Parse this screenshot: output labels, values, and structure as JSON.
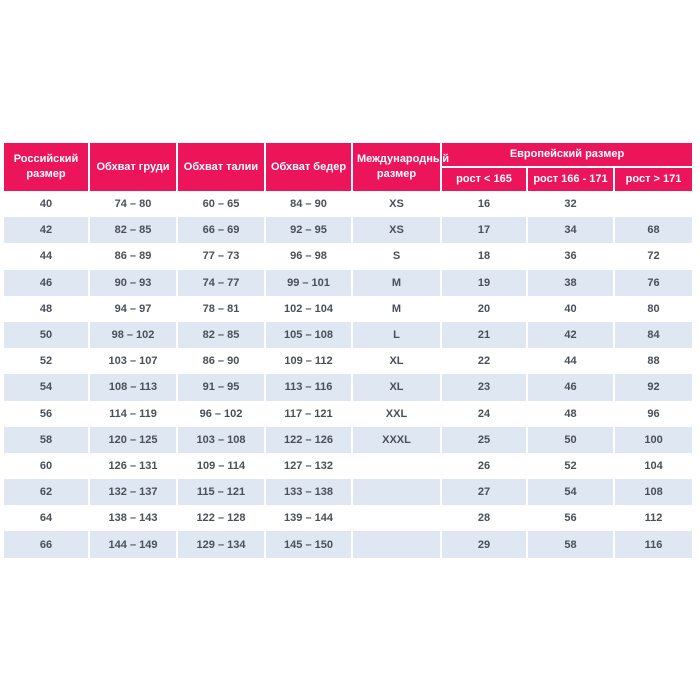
{
  "chart_data": {
    "type": "table",
    "header": {
      "russian_size": "Российский размер",
      "chest": "Обхват груди",
      "waist": "Обхват талии",
      "hips": "Обхват бедер",
      "international_size": "Международный размер",
      "european_group": "Европейский размер",
      "european_subcolumns": [
        "рост < 165",
        "рост 166 - 171",
        "рост > 171"
      ]
    },
    "rows": [
      [
        "40",
        "74 – 80",
        "60 – 65",
        "84 – 90",
        "XS",
        "16",
        "32",
        ""
      ],
      [
        "42",
        "82 – 85",
        "66 – 69",
        "92 – 95",
        "XS",
        "17",
        "34",
        "68"
      ],
      [
        "44",
        "86 – 89",
        "77 – 73",
        "96 – 98",
        "S",
        "18",
        "36",
        "72"
      ],
      [
        "46",
        "90 – 93",
        "74 – 77",
        "99 – 101",
        "M",
        "19",
        "38",
        "76"
      ],
      [
        "48",
        "94 – 97",
        "78 – 81",
        "102 – 104",
        "M",
        "20",
        "40",
        "80"
      ],
      [
        "50",
        "98 – 102",
        "82 – 85",
        "105 – 108",
        "L",
        "21",
        "42",
        "84"
      ],
      [
        "52",
        "103 – 107",
        "86 – 90",
        "109 – 112",
        "XL",
        "22",
        "44",
        "88"
      ],
      [
        "54",
        "108 – 113",
        "91 – 95",
        "113 – 116",
        "XL",
        "23",
        "46",
        "92"
      ],
      [
        "56",
        "114 – 119",
        "96 – 102",
        "117 – 121",
        "XXL",
        "24",
        "48",
        "96"
      ],
      [
        "58",
        "120 – 125",
        "103 – 108",
        "122 – 126",
        "XXXL",
        "25",
        "50",
        "100"
      ],
      [
        "60",
        "126 – 131",
        "109 – 114",
        "127 – 132",
        "",
        "26",
        "52",
        "104"
      ],
      [
        "62",
        "132 – 137",
        "115 – 121",
        "133 – 138",
        "",
        "27",
        "54",
        "108"
      ],
      [
        "64",
        "138 – 143",
        "122 – 128",
        "139 – 144",
        "",
        "28",
        "56",
        "112"
      ],
      [
        "66",
        "144 – 149",
        "129 – 134",
        "145 – 150",
        "",
        "29",
        "58",
        "116"
      ]
    ],
    "layout": {
      "grid": "alternating-row-stripes",
      "legend": "none"
    }
  },
  "colors": {
    "header_bg": "#EC155A",
    "header_text": "#FFFFFF",
    "stripe_bg": "#DEE7F2",
    "body_text": "#4A5057",
    "page_bg": "#FFFFFF"
  }
}
